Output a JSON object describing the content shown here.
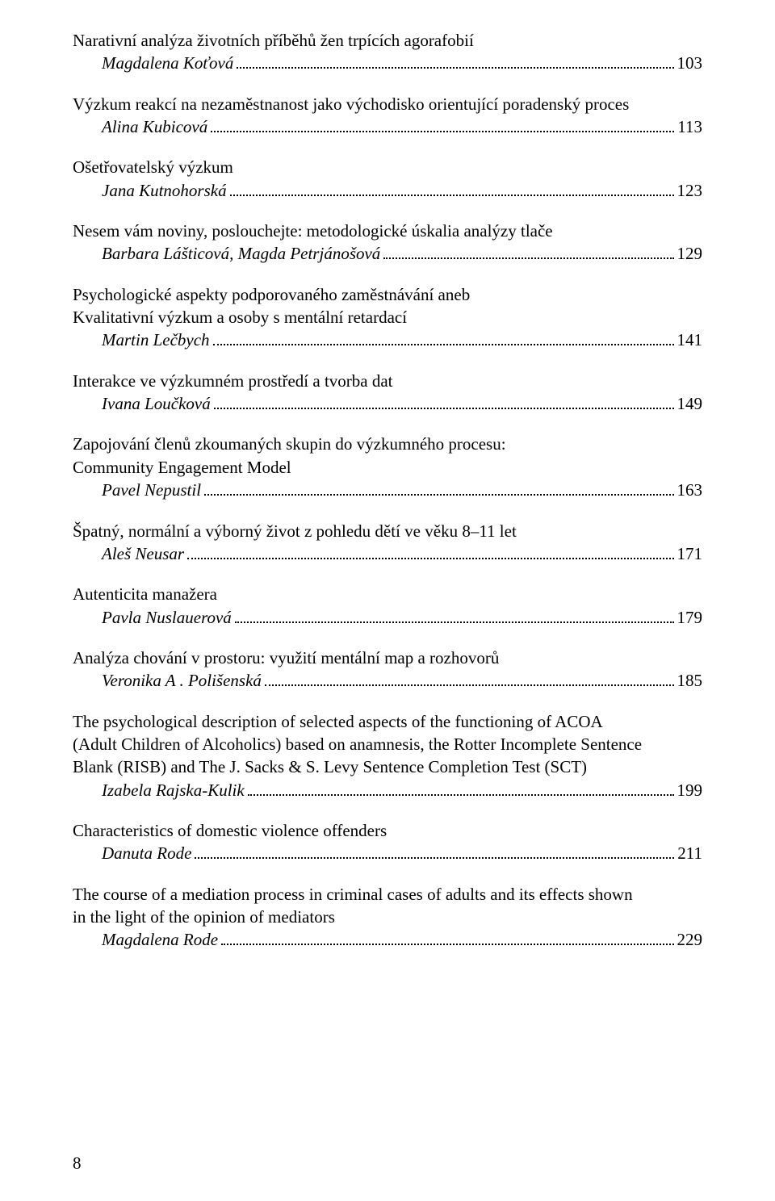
{
  "pageNumber": "8",
  "entries": [
    {
      "title": [
        "Narativní analýza životních příběhů žen trpících agorafobií"
      ],
      "author": "Magdalena Koťová",
      "page": "103"
    },
    {
      "title": [
        "Výzkum reakcí na nezaměstnanost jako východisko orientující poradenský proces"
      ],
      "author": "Alina Kubicová",
      "page": "113"
    },
    {
      "title": [
        "Ošetřovatelský výzkum"
      ],
      "author": "Jana Kutnohorská",
      "page": "123"
    },
    {
      "title": [
        "Nesem vám noviny, poslouchejte: metodologické úskalia analýzy tlače"
      ],
      "author": "Barbara Lášticová, Magda Petrjánošová",
      "page": "129"
    },
    {
      "title": [
        "Psychologické aspekty podporovaného zaměstnávání aneb",
        "Kvalitativní výzkum a osoby s mentální retardací"
      ],
      "author": "Martin Lečbych",
      "page": "141"
    },
    {
      "title": [
        "Interakce ve výzkumném prostředí a tvorba dat"
      ],
      "author": "Ivana Loučková",
      "page": "149"
    },
    {
      "title": [
        "Zapojování členů zkoumaných skupin do výzkumného procesu:",
        "Community Engagement Model"
      ],
      "author": "Pavel Nepustil",
      "page": "163"
    },
    {
      "title": [
        "Špatný, normální a výborný život z pohledu dětí ve věku 8–11 let"
      ],
      "author": "Aleš Neusar",
      "page": "171"
    },
    {
      "title": [
        "Autenticita manažera"
      ],
      "author": "Pavla Nuslauerová",
      "page": "179"
    },
    {
      "title": [
        "Analýza chování v prostoru: využití mentální map a rozhovorů"
      ],
      "author": "Veronika A . Polišenská",
      "page": "185"
    },
    {
      "title": [
        "The psychological description of selected aspects of the functioning of ACOA",
        "(Adult Children of Alcoholics) based on anamnesis, the Rotter Incomplete Sentence",
        "Blank (RISB) and The J. Sacks & S. Levy Sentence Completion Test (SCT)"
      ],
      "author": "Izabela Rajska-Kulik",
      "page": "199"
    },
    {
      "title": [
        "Characteristics of domestic violence offenders"
      ],
      "author": "Danuta Rode",
      "page": "211"
    },
    {
      "title": [
        "The course of a mediation process in criminal cases of adults and its effects shown",
        "in the light of the opinion of mediators"
      ],
      "author": "Magdalena Rode",
      "page": "229"
    }
  ]
}
